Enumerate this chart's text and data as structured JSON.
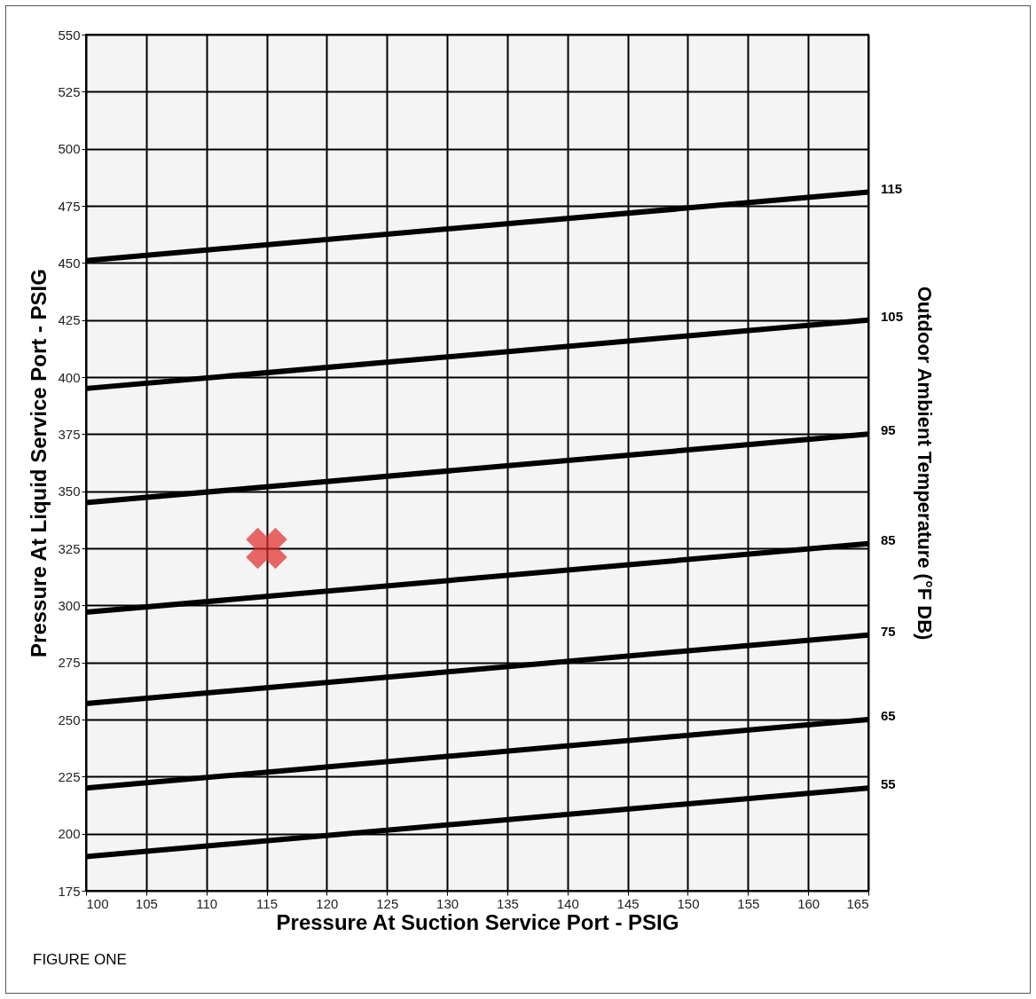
{
  "chart_data": {
    "type": "line",
    "xlabel": "Pressure At Suction Service Port - PSIG",
    "ylabel": "Pressure At Liquid Service Port - PSIG",
    "y2label": "Outdoor Ambient Temperature (°F DB)",
    "x": [
      100,
      165
    ],
    "series": [
      {
        "name": "115",
        "color": "#000000",
        "values": [
          451,
          481
        ]
      },
      {
        "name": "105",
        "color": "#000000",
        "values": [
          395,
          425
        ]
      },
      {
        "name": "95",
        "color": "#000000",
        "values": [
          345,
          375
        ]
      },
      {
        "name": "85",
        "color": "#000000",
        "values": [
          297,
          327
        ]
      },
      {
        "name": "75",
        "color": "#000000",
        "values": [
          257,
          287
        ]
      },
      {
        "name": "65",
        "color": "#000000",
        "values": [
          220,
          250
        ]
      },
      {
        "name": "55",
        "color": "#000000",
        "values": [
          190,
          220
        ]
      },
      {
        "type": "scatter",
        "marker": "cross",
        "color": "#e02a2a",
        "x": [
          115
        ],
        "values": [
          325
        ]
      }
    ],
    "xlim": [
      100,
      165
    ],
    "xticks": [
      100,
      105,
      110,
      115,
      120,
      125,
      130,
      135,
      140,
      145,
      150,
      155,
      160,
      165
    ],
    "ylim": [
      175,
      550
    ],
    "yticks": [
      175,
      200,
      225,
      250,
      275,
      300,
      325,
      350,
      375,
      400,
      425,
      450,
      475,
      500,
      525,
      550
    ],
    "grid": true,
    "line_style": "solid",
    "annotations": [
      "FIGURE ONE"
    ]
  }
}
